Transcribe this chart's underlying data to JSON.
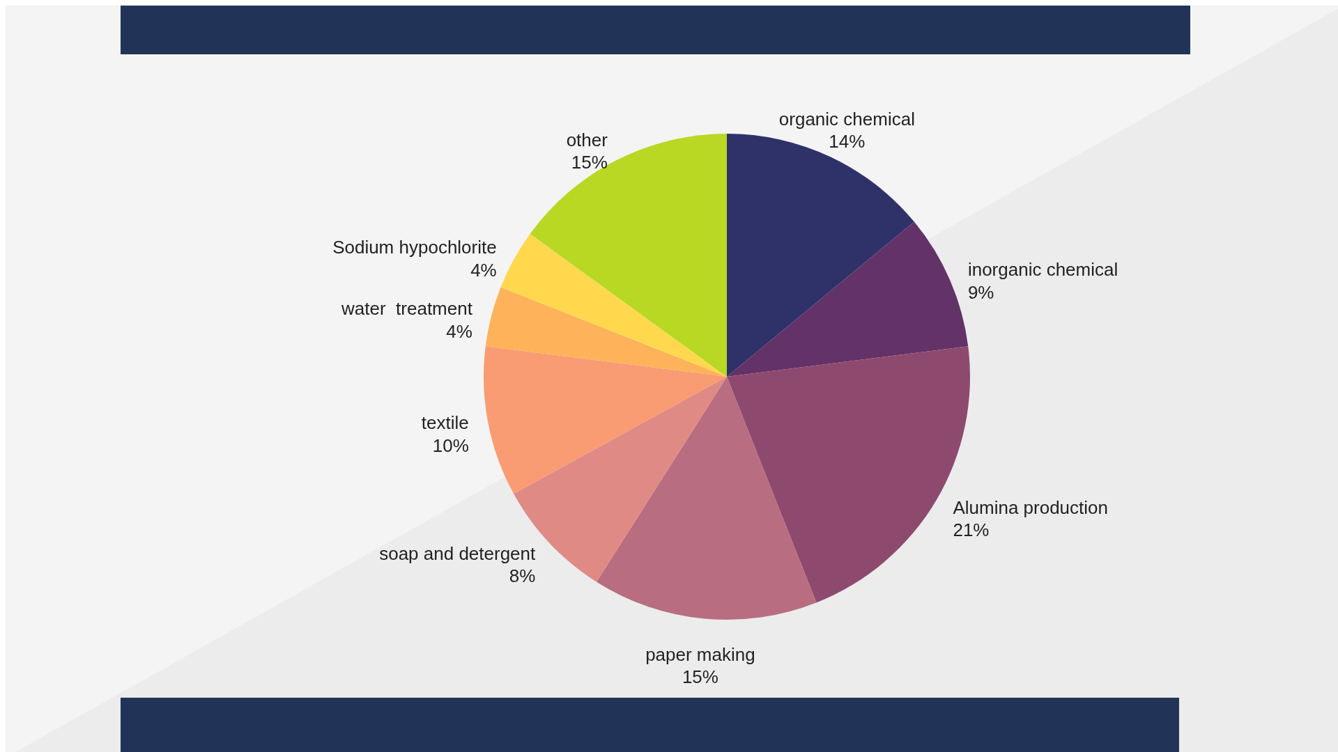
{
  "chart_data": {
    "type": "pie",
    "categories": [
      "organic chemical",
      "inorganic chemical",
      "Alumina production",
      "paper making",
      "soap and detergent",
      "textile",
      "water  treatment",
      "Sodium hypochlorite",
      "other"
    ],
    "values": [
      14,
      9,
      21,
      15,
      8,
      10,
      4,
      4,
      15
    ],
    "colors": [
      "#2e3268",
      "#623268",
      "#8e4a6e",
      "#b86e80",
      "#e08a86",
      "#f99c74",
      "#feb25a",
      "#ffd84e",
      "#b8d824"
    ],
    "value_labels": [
      "14%",
      "9%",
      "21%",
      "15%",
      "8%",
      "10%",
      "4%",
      "4%",
      "15%"
    ]
  }
}
